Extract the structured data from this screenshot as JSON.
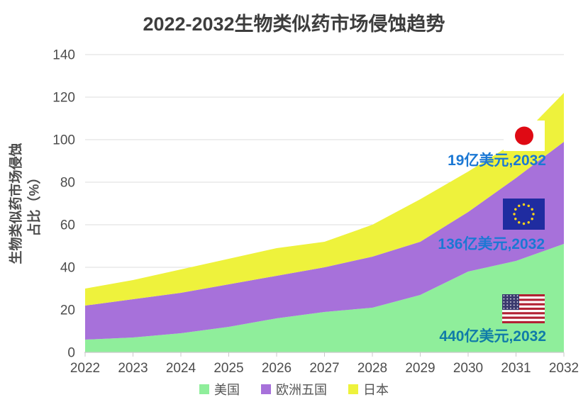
{
  "title": "2022-2032生物类似药市场侵蚀趋势",
  "y_axis": {
    "label_line1": "生物类似药市场侵蚀",
    "label_line2": "占比（%）",
    "ticks": [
      0,
      20,
      40,
      60,
      80,
      100,
      120,
      140
    ]
  },
  "chart_data": {
    "type": "area",
    "stacked": true,
    "title": "2022-2032生物类似药市场侵蚀趋势",
    "ylabel": "生物类似药市场侵蚀占比（%）",
    "xlabel": "",
    "ylim": [
      0,
      140
    ],
    "grid": true,
    "legend_position": "bottom",
    "categories": [
      "2022",
      "2023",
      "2024",
      "2025",
      "2026",
      "2027",
      "2028",
      "2029",
      "2030",
      "2031",
      "2032"
    ],
    "series": [
      {
        "name": "美国",
        "color": "#8FEE9B",
        "values": [
          6,
          7,
          9,
          12,
          16,
          19,
          21,
          27,
          38,
          43,
          51
        ]
      },
      {
        "name": "欧洲五国",
        "color": "#A771DA",
        "values": [
          16,
          18,
          19,
          20,
          20,
          21,
          24,
          25,
          28,
          39,
          48
        ]
      },
      {
        "name": "日本",
        "color": "#EEF23C",
        "values": [
          8,
          9,
          11,
          12,
          13,
          12,
          15,
          20,
          19,
          17,
          23
        ]
      }
    ]
  },
  "annotations": [
    {
      "flag": "japan-flag",
      "text": "19亿美元,2032",
      "color": "#1B78D4"
    },
    {
      "flag": "eu-flag",
      "text": "136亿美元,2032",
      "color": "#1B78D4"
    },
    {
      "flag": "us-flag",
      "text": "440亿美元,2032",
      "color": "#107CA8"
    }
  ]
}
